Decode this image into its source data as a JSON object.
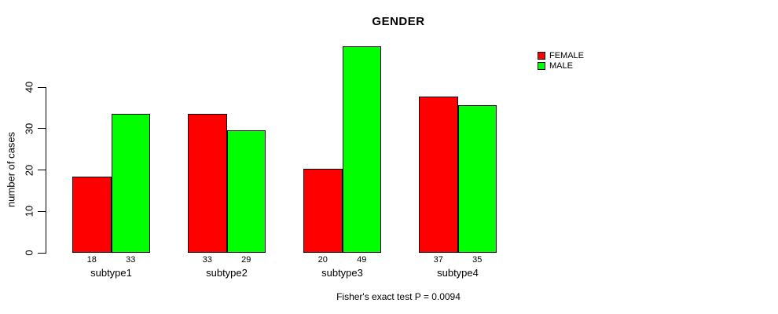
{
  "title": "GENDER",
  "y_axis": {
    "label": "number of cases",
    "tick_labels": [
      "0",
      "10",
      "20",
      "30",
      "40"
    ]
  },
  "legend": {
    "items": [
      {
        "label": "FEMALE",
        "color": "#ff0000"
      },
      {
        "label": "MALE",
        "color": "#00ff00"
      }
    ]
  },
  "footnote": "Fisher's exact test P = 0.0094",
  "chart_data": {
    "type": "bar",
    "title": "GENDER",
    "xlabel": "",
    "ylabel": "number of cases",
    "categories": [
      "subtype1",
      "subtype2",
      "subtype3",
      "subtype4"
    ],
    "series": [
      {
        "name": "FEMALE",
        "color": "#ff0000",
        "values": [
          18,
          33,
          20,
          37
        ]
      },
      {
        "name": "MALE",
        "color": "#00ff00",
        "values": [
          33,
          29,
          49,
          35
        ]
      }
    ],
    "yticks": [
      0,
      10,
      20,
      30,
      40
    ],
    "ylim": [
      0,
      49
    ],
    "grid": false,
    "legend_position": "top-right",
    "bar_value_labels_shown": true,
    "footnote": "Fisher's exact test P = 0.0094"
  }
}
